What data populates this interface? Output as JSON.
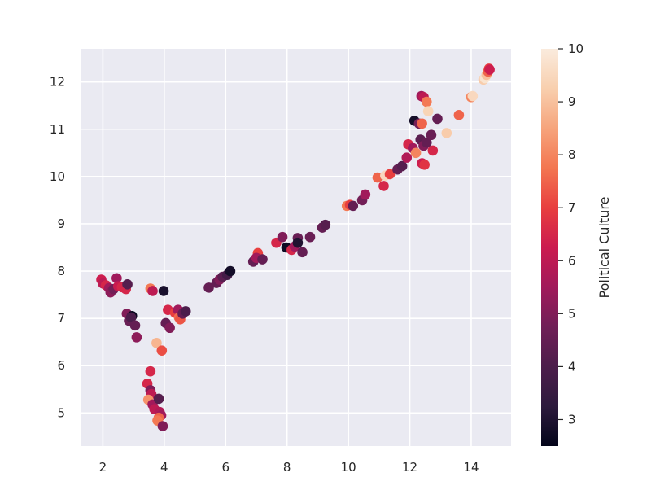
{
  "chart_data": {
    "type": "scatter",
    "title": "",
    "xlabel": "",
    "ylabel": "",
    "xlim": [
      1.3,
      15.3
    ],
    "ylim": [
      4.3,
      12.7
    ],
    "xticks": [
      2,
      4,
      6,
      8,
      10,
      12,
      14
    ],
    "yticks": [
      5,
      6,
      7,
      8,
      9,
      10,
      11,
      12
    ],
    "grid": true,
    "background": "#eaeaf2",
    "colorbar": {
      "label": "Political Culture",
      "range": [
        2.5,
        10
      ],
      "ticks": [
        3,
        4,
        5,
        6,
        7,
        8,
        9,
        10
      ],
      "colormap": "rocket",
      "colors": [
        "#03051a",
        "#2d1a3d",
        "#4c1d4b",
        "#701f57",
        "#a11a5b",
        "#cb1b4f",
        "#e83f3f",
        "#f37651",
        "#f6a47c",
        "#f8cfae",
        "#faebdd"
      ]
    },
    "points": [
      {
        "x": 1.95,
        "y": 7.82,
        "c": 6.3
      },
      {
        "x": 2.0,
        "y": 7.74,
        "c": 6.0
      },
      {
        "x": 2.1,
        "y": 7.7,
        "c": 6.5
      },
      {
        "x": 2.2,
        "y": 7.64,
        "c": 5.5
      },
      {
        "x": 2.25,
        "y": 7.55,
        "c": 5.2
      },
      {
        "x": 2.35,
        "y": 7.62,
        "c": 4.8
      },
      {
        "x": 2.45,
        "y": 7.85,
        "c": 5.5
      },
      {
        "x": 2.5,
        "y": 7.68,
        "c": 6.2
      },
      {
        "x": 2.62,
        "y": 7.66,
        "c": 6.5
      },
      {
        "x": 2.75,
        "y": 7.62,
        "c": 6.5
      },
      {
        "x": 2.8,
        "y": 7.72,
        "c": 4.2
      },
      {
        "x": 2.78,
        "y": 7.1,
        "c": 5.0
      },
      {
        "x": 2.85,
        "y": 6.95,
        "c": 4.6
      },
      {
        "x": 2.95,
        "y": 7.05,
        "c": 2.6
      },
      {
        "x": 2.92,
        "y": 7.02,
        "c": 4.0
      },
      {
        "x": 3.05,
        "y": 6.85,
        "c": 4.5
      },
      {
        "x": 3.1,
        "y": 6.6,
        "c": 5.2
      },
      {
        "x": 3.55,
        "y": 7.63,
        "c": 7.8
      },
      {
        "x": 3.62,
        "y": 7.58,
        "c": 6.0
      },
      {
        "x": 3.98,
        "y": 7.58,
        "c": 2.9
      },
      {
        "x": 3.75,
        "y": 6.48,
        "c": 8.8
      },
      {
        "x": 3.92,
        "y": 6.32,
        "c": 7.2
      },
      {
        "x": 4.12,
        "y": 7.18,
        "c": 6.5
      },
      {
        "x": 4.05,
        "y": 6.9,
        "c": 4.5
      },
      {
        "x": 4.18,
        "y": 6.8,
        "c": 5.0
      },
      {
        "x": 4.35,
        "y": 7.12,
        "c": 7.0
      },
      {
        "x": 4.45,
        "y": 7.18,
        "c": 5.5
      },
      {
        "x": 4.48,
        "y": 7.02,
        "c": 7.6
      },
      {
        "x": 4.52,
        "y": 6.98,
        "c": 7.3
      },
      {
        "x": 4.6,
        "y": 7.1,
        "c": 4.5
      },
      {
        "x": 4.7,
        "y": 7.15,
        "c": 4.0
      },
      {
        "x": 3.55,
        "y": 5.88,
        "c": 6.5
      },
      {
        "x": 3.45,
        "y": 5.62,
        "c": 6.5
      },
      {
        "x": 3.55,
        "y": 5.48,
        "c": 5.0
      },
      {
        "x": 3.58,
        "y": 5.4,
        "c": 6.0
      },
      {
        "x": 3.48,
        "y": 5.28,
        "c": 8.2
      },
      {
        "x": 3.62,
        "y": 5.18,
        "c": 5.5
      },
      {
        "x": 3.68,
        "y": 5.08,
        "c": 6.0
      },
      {
        "x": 3.82,
        "y": 5.3,
        "c": 4.2
      },
      {
        "x": 3.85,
        "y": 5.02,
        "c": 5.8
      },
      {
        "x": 3.9,
        "y": 4.95,
        "c": 5.5
      },
      {
        "x": 3.82,
        "y": 4.9,
        "c": 7.5
      },
      {
        "x": 3.78,
        "y": 4.84,
        "c": 7.8
      },
      {
        "x": 3.95,
        "y": 4.72,
        "c": 5.0
      },
      {
        "x": 5.45,
        "y": 7.65,
        "c": 4.5
      },
      {
        "x": 5.7,
        "y": 7.75,
        "c": 4.5
      },
      {
        "x": 5.8,
        "y": 7.82,
        "c": 5.0
      },
      {
        "x": 5.9,
        "y": 7.88,
        "c": 4.3
      },
      {
        "x": 6.05,
        "y": 7.92,
        "c": 3.8
      },
      {
        "x": 6.15,
        "y": 8.0,
        "c": 2.8
      },
      {
        "x": 6.9,
        "y": 8.2,
        "c": 4.5
      },
      {
        "x": 7.05,
        "y": 8.38,
        "c": 7.0
      },
      {
        "x": 7.0,
        "y": 8.28,
        "c": 5.5
      },
      {
        "x": 7.2,
        "y": 8.25,
        "c": 4.5
      },
      {
        "x": 7.65,
        "y": 8.6,
        "c": 6.5
      },
      {
        "x": 7.85,
        "y": 8.72,
        "c": 5.0
      },
      {
        "x": 7.98,
        "y": 8.5,
        "c": 2.7
      },
      {
        "x": 8.15,
        "y": 8.45,
        "c": 6.5
      },
      {
        "x": 8.25,
        "y": 8.52,
        "c": 5.5
      },
      {
        "x": 8.35,
        "y": 8.7,
        "c": 4.6
      },
      {
        "x": 8.35,
        "y": 8.6,
        "c": 3.0
      },
      {
        "x": 8.5,
        "y": 8.4,
        "c": 4.5
      },
      {
        "x": 8.75,
        "y": 8.72,
        "c": 4.6
      },
      {
        "x": 9.15,
        "y": 8.92,
        "c": 4.5
      },
      {
        "x": 9.25,
        "y": 8.98,
        "c": 4.2
      },
      {
        "x": 9.95,
        "y": 9.38,
        "c": 7.8
      },
      {
        "x": 10.05,
        "y": 9.4,
        "c": 7.0
      },
      {
        "x": 10.15,
        "y": 9.38,
        "c": 4.5
      },
      {
        "x": 10.45,
        "y": 9.5,
        "c": 4.8
      },
      {
        "x": 10.55,
        "y": 9.62,
        "c": 5.5
      },
      {
        "x": 10.95,
        "y": 9.98,
        "c": 7.5
      },
      {
        "x": 11.15,
        "y": 9.8,
        "c": 6.5
      },
      {
        "x": 11.2,
        "y": 10.02,
        "c": 9.5
      },
      {
        "x": 11.35,
        "y": 10.05,
        "c": 7.0
      },
      {
        "x": 11.6,
        "y": 10.15,
        "c": 4.5
      },
      {
        "x": 11.75,
        "y": 10.22,
        "c": 4.2
      },
      {
        "x": 11.9,
        "y": 10.4,
        "c": 5.8
      },
      {
        "x": 11.95,
        "y": 10.68,
        "c": 6.5
      },
      {
        "x": 12.1,
        "y": 10.6,
        "c": 5.5
      },
      {
        "x": 12.2,
        "y": 10.5,
        "c": 8.0
      },
      {
        "x": 12.15,
        "y": 11.18,
        "c": 2.8
      },
      {
        "x": 12.3,
        "y": 11.12,
        "c": 4.8
      },
      {
        "x": 12.4,
        "y": 11.12,
        "c": 7.5
      },
      {
        "x": 12.35,
        "y": 10.78,
        "c": 4.3
      },
      {
        "x": 12.45,
        "y": 10.65,
        "c": 5.0
      },
      {
        "x": 12.55,
        "y": 10.72,
        "c": 4.5
      },
      {
        "x": 12.4,
        "y": 10.28,
        "c": 6.3
      },
      {
        "x": 12.48,
        "y": 10.25,
        "c": 6.8
      },
      {
        "x": 12.38,
        "y": 11.7,
        "c": 5.5
      },
      {
        "x": 12.45,
        "y": 11.68,
        "c": 6.0
      },
      {
        "x": 12.55,
        "y": 11.58,
        "c": 7.8
      },
      {
        "x": 12.6,
        "y": 11.38,
        "c": 9.4
      },
      {
        "x": 12.7,
        "y": 10.88,
        "c": 4.6
      },
      {
        "x": 12.75,
        "y": 10.55,
        "c": 6.5
      },
      {
        "x": 12.9,
        "y": 11.22,
        "c": 4.5
      },
      {
        "x": 13.2,
        "y": 10.92,
        "c": 9.2
      },
      {
        "x": 13.6,
        "y": 11.3,
        "c": 7.5
      },
      {
        "x": 14.0,
        "y": 11.68,
        "c": 8.0
      },
      {
        "x": 14.05,
        "y": 11.7,
        "c": 9.5
      },
      {
        "x": 14.4,
        "y": 12.05,
        "c": 9.2
      },
      {
        "x": 14.45,
        "y": 12.08,
        "c": 9.8
      },
      {
        "x": 14.5,
        "y": 12.15,
        "c": 9.0
      },
      {
        "x": 14.55,
        "y": 12.22,
        "c": 7.5
      },
      {
        "x": 14.58,
        "y": 12.28,
        "c": 7.0
      },
      {
        "x": 14.6,
        "y": 12.26,
        "c": 6.3
      }
    ]
  }
}
